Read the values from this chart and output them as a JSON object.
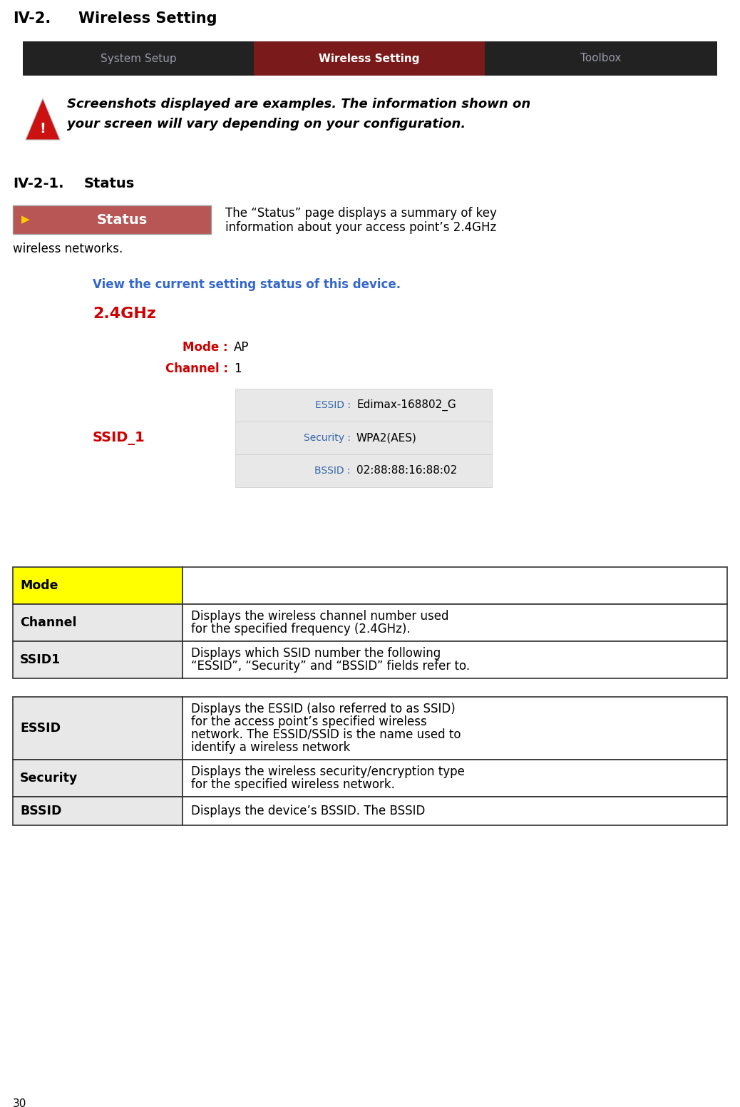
{
  "page_number": "30",
  "main_title": "IV-2.",
  "main_title_tab": "Wireless Setting",
  "nav_items": [
    "System Setup",
    "Wireless Setting",
    "Toolbox"
  ],
  "nav_active": 1,
  "nav_bg": "#222222",
  "nav_active_color": "#7a1a1a",
  "nav_text_color_inactive": "#9999aa",
  "nav_text_color_active": "#ffffff",
  "warning_text_line1": "Screenshots displayed are examples. The information shown on",
  "warning_text_line2": "your screen will vary depending on your configuration.",
  "section_title": "IV-2-1.",
  "section_title_tab": "Status",
  "status_button_text": "Status",
  "status_button_bg": "#b85555",
  "status_button_arrow_color": "#ffcc00",
  "description_line1": "The “Status” page displays a summary of key",
  "description_line2": "information about your access point’s 2.4GHz",
  "description_line3": "wireless networks.",
  "link_text": "View the current setting status of this device.",
  "link_color": "#3366cc",
  "freq_label": "2.4GHz",
  "freq_color": "#cc0000",
  "mode_label": "Mode :",
  "mode_value": "AP",
  "channel_label": "Channel :",
  "channel_value": "1",
  "label_color": "#cc0000",
  "ssid_label": "SSID_1",
  "ssid_color": "#cc0000",
  "table_label_color": "#3366aa",
  "essid_label": "ESSID :",
  "essid_value": "Edimax-168802_G",
  "security_label": "Security :",
  "security_value": "WPA2(AES)",
  "bssid_label": "BSSID :",
  "bssid_value": "02:88:88:16:88:02",
  "table_bg_light": "#e8e8e8",
  "table_bg_white": "#ffffff",
  "ref_table_header_bg": "#ffff00",
  "ref_table_rows": [
    {
      "term": "Mode",
      "desc": "",
      "term_bold": true,
      "highlight": true
    },
    {
      "term": "Channel",
      "desc": "Displays the wireless channel number used\nfor the specified frequency (2.4GHz).",
      "term_bold": true,
      "highlight": false
    },
    {
      "term": "SSID1",
      "desc": "Displays which SSID number the following\n“ESSID”, “Security” and “BSSID” fields refer to.",
      "term_bold": true,
      "highlight": false
    }
  ],
  "ref_table2_rows": [
    {
      "term": "ESSID",
      "desc": "Displays the ESSID (also referred to as SSID)\nfor the access point’s specified wireless\nnetwork. The ESSID/SSID is the name used to\nidentify a wireless network",
      "term_bold": true,
      "highlight": false
    },
    {
      "term": "Security",
      "desc": "Displays the wireless security/encryption type\nfor the specified wireless network.",
      "term_bold": true,
      "highlight": false
    },
    {
      "term": "BSSID",
      "desc": "Displays the device’s BSSID. The BSSID",
      "term_bold": true,
      "highlight": false
    }
  ],
  "bg_color": "#ffffff"
}
